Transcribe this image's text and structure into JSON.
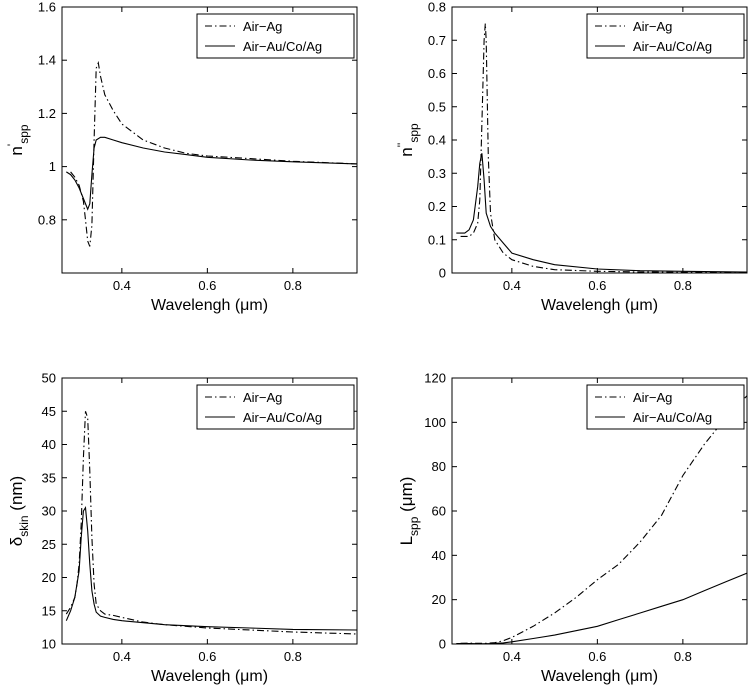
{
  "chart_data": [
    {
      "id": "n-real",
      "type": "line",
      "title": "",
      "xlabel": "Wavelengh (μm)",
      "ylabel": {
        "main": "n",
        "sup": "'",
        "sub": "spp"
      },
      "xlim": [
        0.26,
        0.95
      ],
      "ylim": [
        0.6,
        1.6
      ],
      "xticks": [
        0.4,
        0.6,
        0.8
      ],
      "xtick_labels": [
        "0.4",
        "0.6",
        "0.8"
      ],
      "yticks": [
        0.8,
        1.0,
        1.2,
        1.4,
        1.6
      ],
      "ytick_labels": [
        "0.8",
        "1",
        "1.2",
        "1.4",
        "1.6"
      ],
      "legend": "top-right",
      "grid": false,
      "series": [
        {
          "name": "Air−Ag",
          "style": "dashdot",
          "x": [
            0.28,
            0.29,
            0.3,
            0.31,
            0.315,
            0.32,
            0.325,
            0.33,
            0.335,
            0.34,
            0.345,
            0.35,
            0.36,
            0.38,
            0.4,
            0.45,
            0.5,
            0.55,
            0.6,
            0.7,
            0.8,
            0.95
          ],
          "y": [
            0.98,
            0.96,
            0.93,
            0.87,
            0.8,
            0.72,
            0.7,
            0.78,
            1.1,
            1.37,
            1.39,
            1.34,
            1.27,
            1.21,
            1.16,
            1.1,
            1.07,
            1.05,
            1.04,
            1.03,
            1.02,
            1.01
          ]
        },
        {
          "name": "Air−Au/Co/Ag",
          "style": "solid",
          "x": [
            0.27,
            0.28,
            0.29,
            0.3,
            0.31,
            0.32,
            0.325,
            0.33,
            0.335,
            0.34,
            0.35,
            0.36,
            0.38,
            0.4,
            0.45,
            0.5,
            0.55,
            0.6,
            0.7,
            0.8,
            0.95
          ],
          "y": [
            0.98,
            0.97,
            0.95,
            0.92,
            0.88,
            0.84,
            0.86,
            0.97,
            1.07,
            1.1,
            1.11,
            1.11,
            1.1,
            1.09,
            1.07,
            1.055,
            1.045,
            1.035,
            1.025,
            1.018,
            1.01
          ]
        }
      ]
    },
    {
      "id": "n-imag",
      "type": "line",
      "title": "",
      "xlabel": "Wavelengh (μm)",
      "ylabel": {
        "main": "n",
        "sup": "''",
        "sub": "spp"
      },
      "xlim": [
        0.26,
        0.95
      ],
      "ylim": [
        0,
        0.8
      ],
      "xticks": [
        0.4,
        0.6,
        0.8
      ],
      "xtick_labels": [
        "0.4",
        "0.6",
        "0.8"
      ],
      "yticks": [
        0,
        0.1,
        0.2,
        0.3,
        0.4,
        0.5,
        0.6,
        0.7,
        0.8
      ],
      "ytick_labels": [
        "0",
        "0.1",
        "0.2",
        "0.3",
        "0.4",
        "0.5",
        "0.6",
        "0.7",
        "0.8"
      ],
      "legend": "top-right",
      "grid": false,
      "series": [
        {
          "name": "Air−Ag",
          "style": "dashdot",
          "x": [
            0.28,
            0.29,
            0.3,
            0.31,
            0.32,
            0.325,
            0.33,
            0.335,
            0.338,
            0.34,
            0.345,
            0.35,
            0.36,
            0.38,
            0.4,
            0.45,
            0.5,
            0.6,
            0.7,
            0.8,
            0.95
          ],
          "y": [
            0.11,
            0.11,
            0.11,
            0.12,
            0.15,
            0.22,
            0.45,
            0.7,
            0.75,
            0.7,
            0.35,
            0.18,
            0.1,
            0.06,
            0.04,
            0.02,
            0.01,
            0.005,
            0.003,
            0.002,
            0.001
          ]
        },
        {
          "name": "Air−Au/Co/Ag",
          "style": "solid",
          "x": [
            0.27,
            0.28,
            0.29,
            0.3,
            0.31,
            0.32,
            0.325,
            0.33,
            0.335,
            0.34,
            0.35,
            0.36,
            0.38,
            0.4,
            0.45,
            0.5,
            0.6,
            0.7,
            0.8,
            0.95
          ],
          "y": [
            0.12,
            0.12,
            0.12,
            0.13,
            0.16,
            0.26,
            0.33,
            0.36,
            0.28,
            0.18,
            0.14,
            0.12,
            0.09,
            0.06,
            0.04,
            0.025,
            0.012,
            0.007,
            0.005,
            0.003
          ]
        }
      ]
    },
    {
      "id": "delta-skin",
      "type": "line",
      "title": "",
      "xlabel": "Wavelengh (μm)",
      "ylabel": {
        "main": "δ",
        "sup": "",
        "sub": "skin",
        "unit": " (nm)"
      },
      "xlim": [
        0.26,
        0.95
      ],
      "ylim": [
        10,
        50
      ],
      "xticks": [
        0.4,
        0.6,
        0.8
      ],
      "xtick_labels": [
        "0.4",
        "0.6",
        "0.8"
      ],
      "yticks": [
        10,
        15,
        20,
        25,
        30,
        35,
        40,
        45,
        50
      ],
      "ytick_labels": [
        "10",
        "15",
        "20",
        "25",
        "30",
        "35",
        "40",
        "45",
        "50"
      ],
      "legend": "top-right",
      "grid": false,
      "series": [
        {
          "name": "Air−Ag",
          "style": "dashdot",
          "x": [
            0.27,
            0.28,
            0.29,
            0.295,
            0.3,
            0.305,
            0.31,
            0.315,
            0.32,
            0.325,
            0.33,
            0.335,
            0.34,
            0.35,
            0.36,
            0.38,
            0.4,
            0.45,
            0.5,
            0.6,
            0.7,
            0.8,
            0.95
          ],
          "y": [
            14.5,
            15.5,
            17,
            19,
            22,
            28,
            38,
            45,
            44,
            36,
            26,
            19,
            16,
            15,
            14.5,
            14.3,
            14,
            13.3,
            12.9,
            12.4,
            12.1,
            11.8,
            11.5
          ]
        },
        {
          "name": "Air−Au/Co/Ag",
          "style": "solid",
          "x": [
            0.27,
            0.28,
            0.29,
            0.3,
            0.305,
            0.31,
            0.315,
            0.32,
            0.325,
            0.33,
            0.335,
            0.34,
            0.35,
            0.36,
            0.38,
            0.4,
            0.45,
            0.5,
            0.6,
            0.7,
            0.8,
            0.95
          ],
          "y": [
            13.5,
            15,
            17,
            21,
            26,
            30,
            30.5,
            27,
            22,
            18,
            16,
            14.8,
            14.2,
            14,
            13.7,
            13.5,
            13.2,
            12.9,
            12.6,
            12.4,
            12.2,
            12.1
          ]
        }
      ]
    },
    {
      "id": "l-spp",
      "type": "line",
      "title": "",
      "xlabel": "Wavelengh (μm)",
      "ylabel": {
        "main": "L",
        "sup": "",
        "sub": "spp",
        "unit": " (μm)"
      },
      "xlim": [
        0.26,
        0.95
      ],
      "ylim": [
        0,
        120
      ],
      "xticks": [
        0.4,
        0.6,
        0.8
      ],
      "xtick_labels": [
        "0.4",
        "0.6",
        "0.8"
      ],
      "yticks": [
        0,
        20,
        40,
        60,
        80,
        100,
        120
      ],
      "ytick_labels": [
        "0",
        "20",
        "40",
        "60",
        "80",
        "100",
        "120"
      ],
      "legend": "top-right",
      "grid": false,
      "series": [
        {
          "name": "Air−Ag",
          "style": "dashdot",
          "x": [
            0.28,
            0.3,
            0.32,
            0.34,
            0.36,
            0.38,
            0.4,
            0.45,
            0.5,
            0.55,
            0.6,
            0.65,
            0.7,
            0.75,
            0.8,
            0.85,
            0.9,
            0.95
          ],
          "y": [
            0.3,
            0.4,
            0.3,
            0.3,
            0.6,
            1.5,
            3,
            8,
            14,
            21,
            29,
            36,
            46,
            58,
            76,
            90,
            102,
            112
          ]
        },
        {
          "name": "Air−Au/Co/Ag",
          "style": "solid",
          "x": [
            0.27,
            0.3,
            0.33,
            0.35,
            0.38,
            0.4,
            0.45,
            0.5,
            0.55,
            0.6,
            0.65,
            0.7,
            0.75,
            0.8,
            0.85,
            0.9,
            0.95
          ],
          "y": [
            0.2,
            0.2,
            0.1,
            0.2,
            0.5,
            1,
            2.5,
            4,
            6,
            8,
            11,
            14,
            17,
            20,
            24,
            28,
            32
          ]
        }
      ]
    }
  ]
}
